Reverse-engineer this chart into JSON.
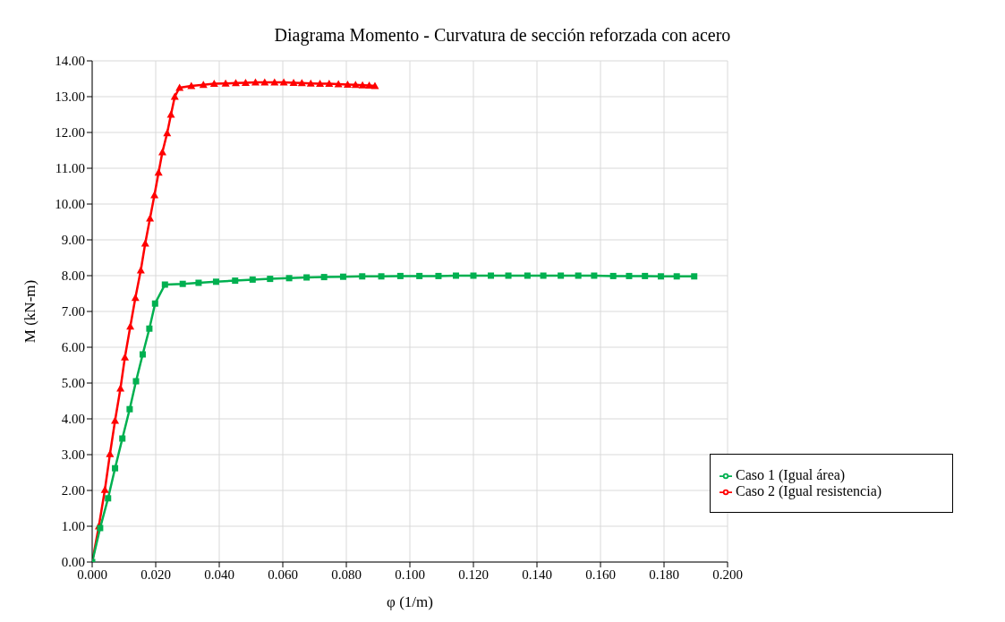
{
  "chart_data": {
    "type": "line",
    "title": "Diagrama Momento - Curvatura de sección reforzada con acero",
    "xlabel": "φ (1/m)",
    "ylabel": "M (kN-m)",
    "xlim": [
      0,
      0.2
    ],
    "xticks": [
      {
        "value": 0,
        "label": "0.000"
      },
      {
        "value": 0.02,
        "label": "0.020"
      },
      {
        "value": 0.04,
        "label": "0.040"
      },
      {
        "value": 0.06,
        "label": "0.060"
      },
      {
        "value": 0.08,
        "label": "0.080"
      },
      {
        "value": 0.1,
        "label": "0.100"
      },
      {
        "value": 0.12,
        "label": "0.120"
      },
      {
        "value": 0.14,
        "label": "0.140"
      },
      {
        "value": 0.16,
        "label": "0.160"
      },
      {
        "value": 0.18,
        "label": "0.180"
      },
      {
        "value": 0.2,
        "label": "0.200"
      }
    ],
    "ylim": [
      0,
      14
    ],
    "yticks": [
      {
        "value": 0,
        "label": "0.00"
      },
      {
        "value": 1,
        "label": "1.00"
      },
      {
        "value": 2,
        "label": "2.00"
      },
      {
        "value": 3,
        "label": "3.00"
      },
      {
        "value": 4,
        "label": "4.00"
      },
      {
        "value": 5,
        "label": "5.00"
      },
      {
        "value": 6,
        "label": "6.00"
      },
      {
        "value": 7,
        "label": "7.00"
      },
      {
        "value": 8,
        "label": "8.00"
      },
      {
        "value": 9,
        "label": "9.00"
      },
      {
        "value": 10,
        "label": "10.00"
      },
      {
        "value": 11,
        "label": "11.00"
      },
      {
        "value": 12,
        "label": "12.00"
      },
      {
        "value": 13,
        "label": "13.00"
      },
      {
        "value": 14,
        "label": "14.00"
      }
    ],
    "grid": true,
    "legend": "bottom right",
    "series": [
      {
        "name": "Caso 1 (Igual área)",
        "color": "#00b050",
        "marker": "square",
        "x": [
          0,
          0.0025,
          0.005,
          0.0072,
          0.0095,
          0.0118,
          0.0138,
          0.0159,
          0.018,
          0.0198,
          0.0229,
          0.0285,
          0.0335,
          0.039,
          0.045,
          0.0505,
          0.056,
          0.062,
          0.0675,
          0.073,
          0.079,
          0.085,
          0.091,
          0.097,
          0.103,
          0.109,
          0.1145,
          0.12,
          0.1255,
          0.131,
          0.137,
          0.142,
          0.1475,
          0.153,
          0.158,
          0.164,
          0.169,
          0.174,
          0.179,
          0.184,
          0.1895
        ],
        "values": [
          0,
          0.95,
          1.78,
          2.62,
          3.45,
          4.27,
          5.05,
          5.8,
          6.52,
          7.22,
          7.75,
          7.77,
          7.8,
          7.83,
          7.86,
          7.89,
          7.91,
          7.93,
          7.95,
          7.96,
          7.97,
          7.98,
          7.98,
          7.99,
          7.99,
          7.99,
          8,
          8,
          8,
          8,
          8,
          8,
          8,
          8,
          8,
          7.99,
          7.99,
          7.99,
          7.98,
          7.98,
          7.98
        ]
      },
      {
        "name": "Caso 2 (Igual resistencia)",
        "color": "#ff0000",
        "marker": "triangle",
        "x": [
          0,
          0.0021,
          0.004,
          0.0056,
          0.0072,
          0.0089,
          0.0103,
          0.012,
          0.0136,
          0.0153,
          0.0167,
          0.0182,
          0.0196,
          0.0209,
          0.0221,
          0.0236,
          0.0248,
          0.026,
          0.0275,
          0.0312,
          0.035,
          0.0384,
          0.042,
          0.0452,
          0.0483,
          0.0514,
          0.0543,
          0.0574,
          0.0603,
          0.0634,
          0.066,
          0.0688,
          0.0717,
          0.0746,
          0.0775,
          0.0804,
          0.0829,
          0.0851,
          0.0872,
          0.089
        ],
        "values": [
          0,
          1,
          2.02,
          3.02,
          3.95,
          4.85,
          5.72,
          6.58,
          7.38,
          8.15,
          8.9,
          9.6,
          10.25,
          10.88,
          11.45,
          11.98,
          12.5,
          13,
          13.25,
          13.3,
          13.33,
          13.36,
          13.37,
          13.38,
          13.39,
          13.4,
          13.4,
          13.4,
          13.4,
          13.39,
          13.38,
          13.37,
          13.36,
          13.36,
          13.35,
          13.34,
          13.33,
          13.32,
          13.31,
          13.3
        ]
      }
    ]
  }
}
